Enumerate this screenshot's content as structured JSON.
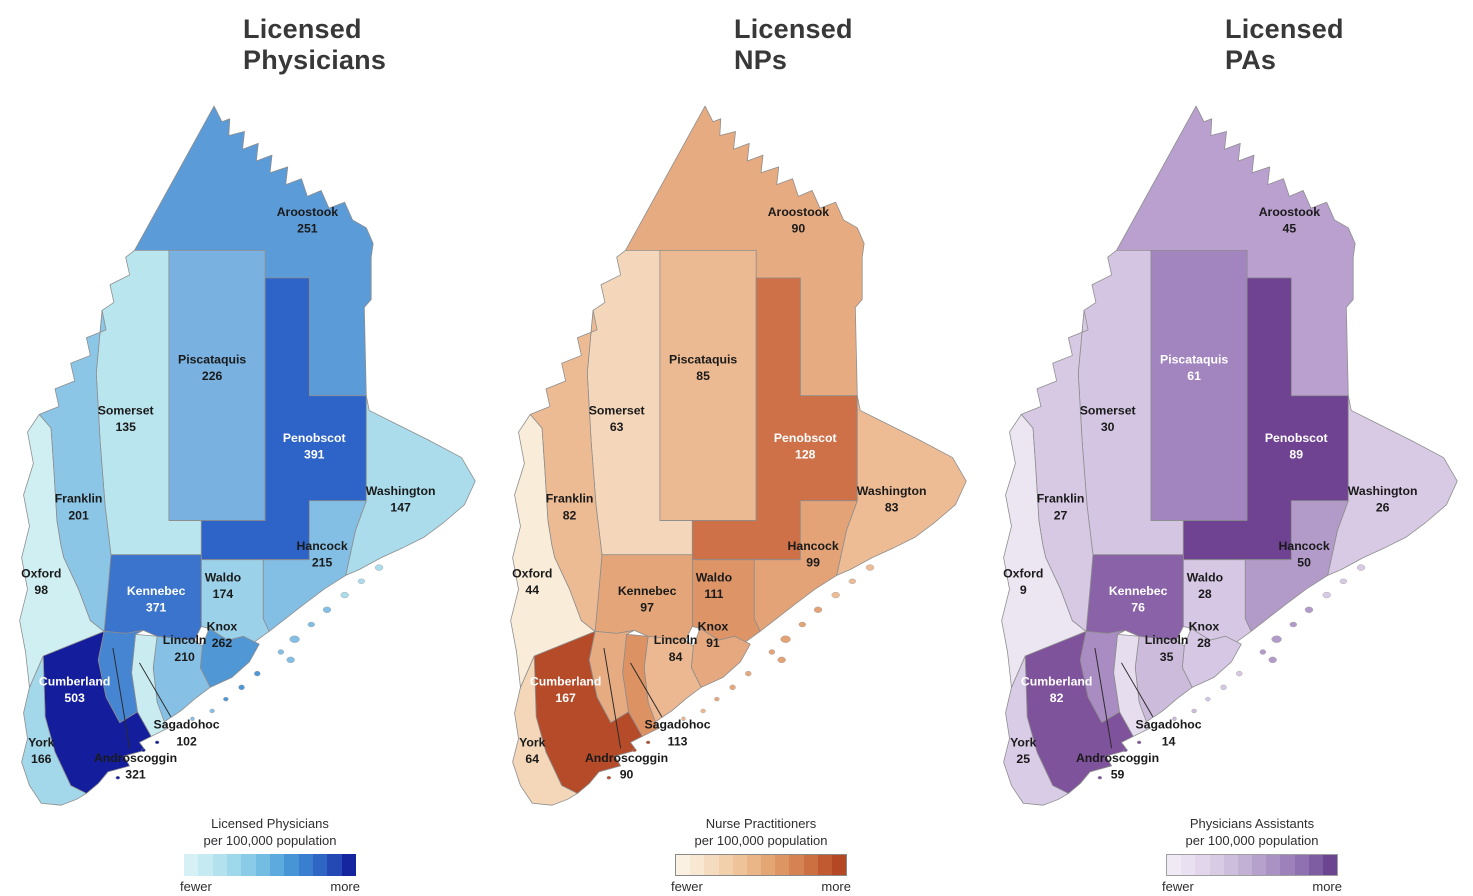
{
  "panels": [
    {
      "id": "physicians",
      "title_lines": [
        "Licensed",
        "Physicians"
      ],
      "legend": {
        "title_lines": [
          "Licensed Physicians",
          "per 100,000 population"
        ],
        "fewer": "fewer",
        "more": "more",
        "bar_border": null,
        "colors": [
          "#d6f1f5",
          "#c5eaf2",
          "#b3e2ee",
          "#9fd8eb",
          "#8acce7",
          "#73bce2",
          "#5caade",
          "#4895d6",
          "#3a7ecf",
          "#2f66c4",
          "#2449b5",
          "#14259f"
        ]
      },
      "counties": [
        {
          "name": "Aroostook",
          "value": "251",
          "fill": "#5b9bd8",
          "light": false
        },
        {
          "name": "Somerset",
          "value": "135",
          "fill": "#b9e5ee",
          "light": false
        },
        {
          "name": "Piscataquis",
          "value": "226",
          "fill": "#79b2e0",
          "light": false
        },
        {
          "name": "Penobscot",
          "value": "391",
          "fill": "#2e64c7",
          "light": true
        },
        {
          "name": "Washington",
          "value": "147",
          "fill": "#aadcec",
          "light": false
        },
        {
          "name": "Hancock",
          "value": "215",
          "fill": "#83bfe5",
          "light": false
        },
        {
          "name": "Waldo",
          "value": "174",
          "fill": "#9cd2e9",
          "light": false
        },
        {
          "name": "Knox",
          "value": "262",
          "fill": "#4f97d5",
          "light": false
        },
        {
          "name": "Lincoln",
          "value": "210",
          "fill": "#86c1e5",
          "light": false
        },
        {
          "name": "Sagadohoc",
          "value": "102",
          "fill": "#c9ecf1",
          "light": false
        },
        {
          "name": "Kennebec",
          "value": "371",
          "fill": "#3b74cd",
          "light": true
        },
        {
          "name": "Androscoggin",
          "value": "321",
          "fill": "#4585d1",
          "light": false
        },
        {
          "name": "Cumberland",
          "value": "503",
          "fill": "#141e9c",
          "light": true
        },
        {
          "name": "York",
          "value": "166",
          "fill": "#a3d7ea",
          "light": false
        },
        {
          "name": "Oxford",
          "value": "98",
          "fill": "#cfeff3",
          "light": false
        },
        {
          "name": "Franklin",
          "value": "201",
          "fill": "#8cc6e7",
          "light": false
        }
      ]
    },
    {
      "id": "nps",
      "title_lines": [
        "Licensed",
        "NPs"
      ],
      "legend": {
        "title_lines": [
          "Nurse Practitioners",
          "per 100,000 population"
        ],
        "fewer": "fewer",
        "more": "more",
        "bar_border": "#8a8a8a",
        "colors": [
          "#faf1e2",
          "#f8e7d1",
          "#f5dcbe",
          "#f2d0ab",
          "#efc399",
          "#eab587",
          "#e4a674",
          "#dd9563",
          "#d58352",
          "#cc7042",
          "#c15a31",
          "#b44724"
        ]
      },
      "counties": [
        {
          "name": "Aroostook",
          "value": "90",
          "fill": "#e7ab81",
          "light": false
        },
        {
          "name": "Somerset",
          "value": "63",
          "fill": "#f4d7ba",
          "light": false
        },
        {
          "name": "Piscataquis",
          "value": "85",
          "fill": "#ecba92",
          "light": false
        },
        {
          "name": "Penobscot",
          "value": "128",
          "fill": "#cf7148",
          "light": true
        },
        {
          "name": "Washington",
          "value": "83",
          "fill": "#edbc95",
          "light": false
        },
        {
          "name": "Hancock",
          "value": "99",
          "fill": "#e3a377",
          "light": false
        },
        {
          "name": "Waldo",
          "value": "111",
          "fill": "#dd9466",
          "light": false
        },
        {
          "name": "Knox",
          "value": "91",
          "fill": "#e6a97f",
          "light": false
        },
        {
          "name": "Lincoln",
          "value": "84",
          "fill": "#ecb891",
          "light": false
        },
        {
          "name": "Sagadohoc",
          "value": "113",
          "fill": "#dc9263",
          "light": false
        },
        {
          "name": "Kennebec",
          "value": "97",
          "fill": "#e4a679",
          "light": false
        },
        {
          "name": "Androscoggin",
          "value": "90",
          "fill": "#e7ab81",
          "light": false
        },
        {
          "name": "Cumberland",
          "value": "167",
          "fill": "#b54b28",
          "light": true
        },
        {
          "name": "York",
          "value": "64",
          "fill": "#f4d6b8",
          "light": false
        },
        {
          "name": "Oxford",
          "value": "44",
          "fill": "#f9ecd9",
          "light": false
        },
        {
          "name": "Franklin",
          "value": "82",
          "fill": "#edbb93",
          "light": false
        }
      ]
    },
    {
      "id": "pas",
      "title_lines": [
        "Licensed",
        "PAs"
      ],
      "legend": {
        "title_lines": [
          "Physicians Assistants",
          "per 100,000 population"
        ],
        "fewer": "fewer",
        "more": "more",
        "bar_border": "#a0a0a0",
        "colors": [
          "#f0eaf5",
          "#e9e0f1",
          "#e1d6eb",
          "#d8cbe4",
          "#cebedd",
          "#c2b0d5",
          "#b6a1cd",
          "#aa92c4",
          "#9d81bb",
          "#8f70b1",
          "#7f5da3",
          "#6c4590"
        ]
      },
      "counties": [
        {
          "name": "Aroostook",
          "value": "45",
          "fill": "#b9a0cf",
          "light": false
        },
        {
          "name": "Somerset",
          "value": "30",
          "fill": "#d4c6e3",
          "light": false
        },
        {
          "name": "Piscataquis",
          "value": "61",
          "fill": "#a285bf",
          "light": true
        },
        {
          "name": "Penobscot",
          "value": "89",
          "fill": "#6f4391",
          "light": true
        },
        {
          "name": "Washington",
          "value": "26",
          "fill": "#d8cae5",
          "light": false
        },
        {
          "name": "Hancock",
          "value": "50",
          "fill": "#b29bc9",
          "light": false
        },
        {
          "name": "Waldo",
          "value": "28",
          "fill": "#d6c8e4",
          "light": false
        },
        {
          "name": "Knox",
          "value": "28",
          "fill": "#d6c8e4",
          "light": false
        },
        {
          "name": "Lincoln",
          "value": "35",
          "fill": "#ccbbdb",
          "light": false
        },
        {
          "name": "Sagadohoc",
          "value": "14",
          "fill": "#e6ddef",
          "light": false
        },
        {
          "name": "Kennebec",
          "value": "76",
          "fill": "#8a62a8",
          "light": true
        },
        {
          "name": "Androscoggin",
          "value": "59",
          "fill": "#a98cc2",
          "light": false
        },
        {
          "name": "Cumberland",
          "value": "82",
          "fill": "#7f539b",
          "light": true
        },
        {
          "name": "York",
          "value": "25",
          "fill": "#d9cce6",
          "light": false
        },
        {
          "name": "Oxford",
          "value": "9",
          "fill": "#ece5f2",
          "light": false
        },
        {
          "name": "Franklin",
          "value": "27",
          "fill": "#d7c9e4",
          "light": false
        }
      ]
    }
  ]
}
